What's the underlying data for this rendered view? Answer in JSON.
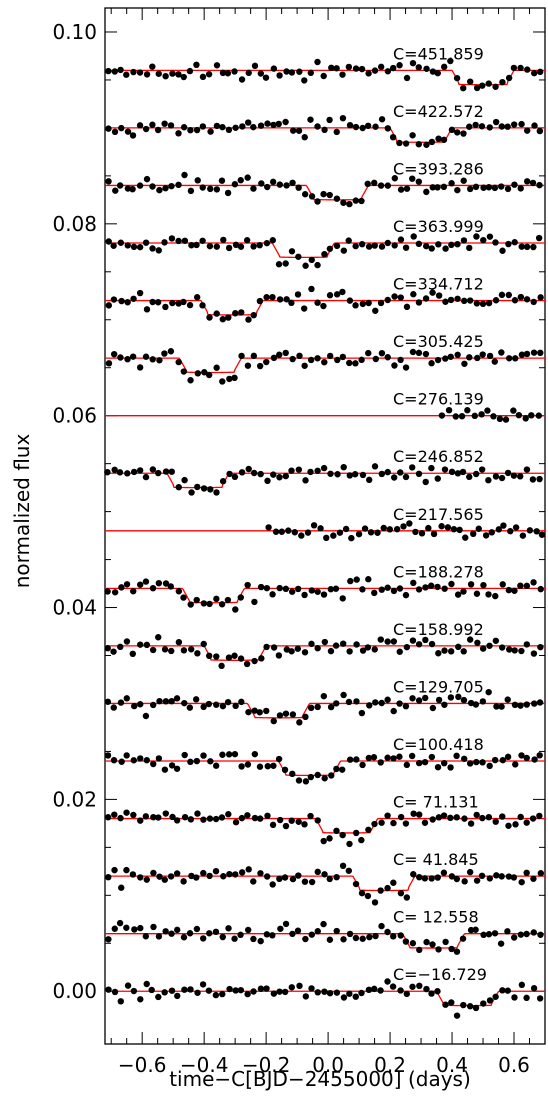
{
  "chart_data": {
    "type": "line",
    "xlabel": "time−C[BJD−2455000] (days)",
    "ylabel": "normalized flux",
    "xlim": [
      -0.72,
      0.7
    ],
    "ylim": [
      -0.0055,
      0.1025
    ],
    "x_ticks": [
      -0.6,
      -0.4,
      -0.2,
      0.0,
      0.2,
      0.4,
      0.6
    ],
    "x_tick_labels": [
      "−0.6",
      "−0.4",
      "−0.2",
      "0.0",
      "0.2",
      "0.4",
      "0.6"
    ],
    "y_ticks": [
      0.0,
      0.02,
      0.04,
      0.06,
      0.08,
      0.1
    ],
    "y_tick_labels": [
      "0.00",
      "0.02",
      "0.04",
      "0.06",
      "0.08",
      "0.10"
    ],
    "model_color": "#ff0000",
    "point_color": "#000000",
    "series": [
      {
        "name": "C=451.859",
        "baseline": 0.096,
        "transit_center": 0.5,
        "half_width": 0.1,
        "depth": 0.0015,
        "data_from": -0.72,
        "data_to": 0.7
      },
      {
        "name": "C=422.572",
        "baseline": 0.09,
        "transit_center": 0.3,
        "half_width": 0.1,
        "depth": 0.0015,
        "data_from": -0.72,
        "data_to": 0.7
      },
      {
        "name": "C=393.286",
        "baseline": 0.084,
        "transit_center": 0.03,
        "half_width": 0.1,
        "depth": 0.0015,
        "data_from": -0.72,
        "data_to": 0.7
      },
      {
        "name": "C=363.999",
        "baseline": 0.078,
        "transit_center": -0.08,
        "half_width": 0.1,
        "depth": 0.0015,
        "data_from": -0.72,
        "data_to": 0.7
      },
      {
        "name": "C=334.712",
        "baseline": 0.072,
        "transit_center": -0.31,
        "half_width": 0.1,
        "depth": 0.0015,
        "data_from": -0.72,
        "data_to": 0.7
      },
      {
        "name": "C=305.425",
        "baseline": 0.066,
        "transit_center": -0.38,
        "half_width": 0.1,
        "depth": 0.0015,
        "data_from": -0.72,
        "data_to": 0.7
      },
      {
        "name": "C=276.139",
        "baseline": 0.06,
        "transit_center": null,
        "half_width": 0.1,
        "depth": 0.0,
        "data_from": 0.36,
        "data_to": 0.7
      },
      {
        "name": "C=246.852",
        "baseline": 0.054,
        "transit_center": -0.42,
        "half_width": 0.1,
        "depth": 0.0015,
        "data_from": -0.72,
        "data_to": 0.7
      },
      {
        "name": "C=217.565",
        "baseline": 0.048,
        "transit_center": null,
        "half_width": 0.1,
        "depth": 0.0,
        "data_from": -0.2,
        "data_to": 0.7
      },
      {
        "name": "C=188.278",
        "baseline": 0.042,
        "transit_center": -0.37,
        "half_width": 0.1,
        "depth": 0.0015,
        "data_from": -0.72,
        "data_to": 0.7
      },
      {
        "name": "C=158.992",
        "baseline": 0.036,
        "transit_center": -0.3,
        "half_width": 0.1,
        "depth": 0.0015,
        "data_from": -0.72,
        "data_to": 0.7
      },
      {
        "name": "C=129.705",
        "baseline": 0.03,
        "transit_center": -0.16,
        "half_width": 0.1,
        "depth": 0.0015,
        "data_from": -0.72,
        "data_to": 0.7
      },
      {
        "name": "C=100.418",
        "baseline": 0.024,
        "transit_center": -0.06,
        "half_width": 0.1,
        "depth": 0.0015,
        "data_from": -0.72,
        "data_to": 0.7
      },
      {
        "name": "C= 71.131",
        "baseline": 0.018,
        "transit_center": 0.06,
        "half_width": 0.1,
        "depth": 0.0015,
        "data_from": -0.72,
        "data_to": 0.7
      },
      {
        "name": "C= 41.845",
        "baseline": 0.012,
        "transit_center": 0.18,
        "half_width": 0.1,
        "depth": 0.0015,
        "data_from": -0.72,
        "data_to": 0.7
      },
      {
        "name": "C= 12.558",
        "baseline": 0.006,
        "transit_center": 0.34,
        "half_width": 0.1,
        "depth": 0.0015,
        "data_from": -0.72,
        "data_to": 0.7
      },
      {
        "name": "C=−16.729",
        "baseline": 0.0,
        "transit_center": 0.45,
        "half_width": 0.1,
        "depth": 0.0015,
        "data_from": -0.72,
        "data_to": 0.7
      }
    ]
  }
}
